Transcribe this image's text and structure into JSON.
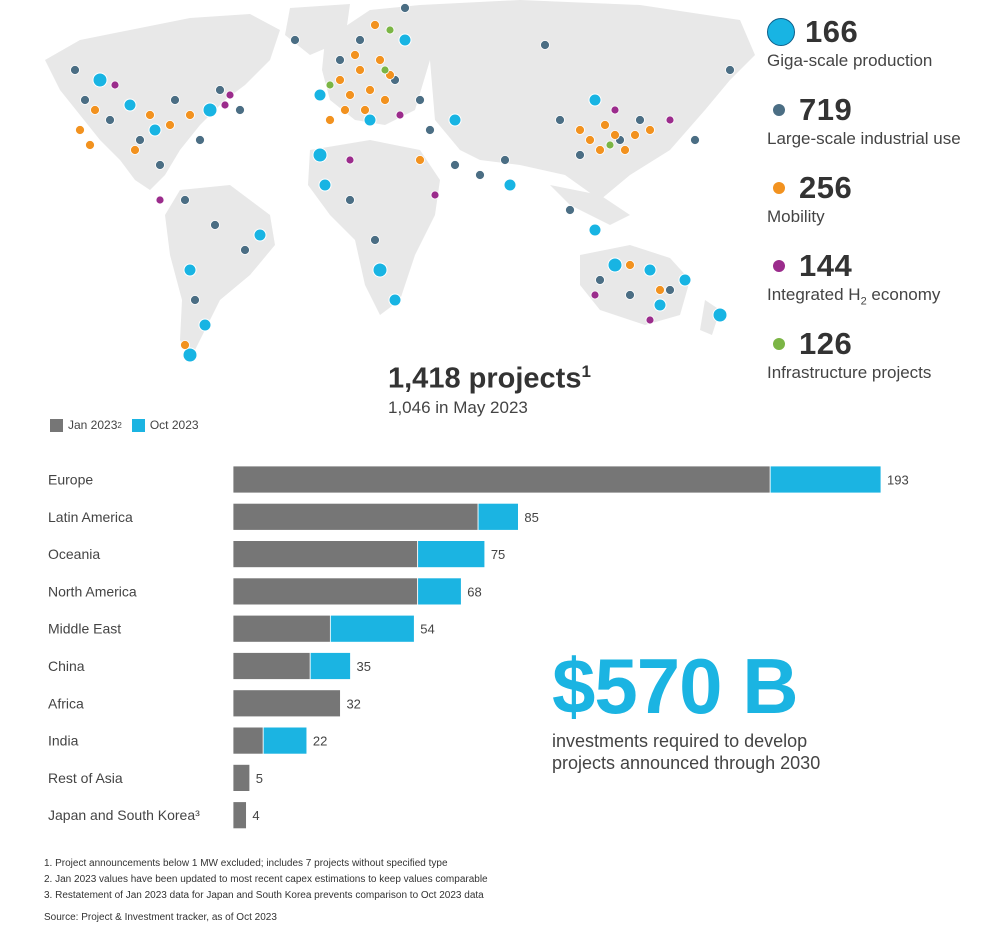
{
  "colors": {
    "giga": "#18b4e3",
    "large": "#4b6e84",
    "mobility": "#f2921f",
    "integrated": "#9b2c8c",
    "infrastructure": "#7bb545",
    "land": "#e8e8e8",
    "jan": "#767676",
    "oct": "#1bb4e2"
  },
  "stats": [
    {
      "value": "166",
      "label": "Giga-scale production",
      "icon": "giga-dot"
    },
    {
      "value": "719",
      "label": "Large-scale industrial use",
      "icon": "large-dot"
    },
    {
      "value": "256",
      "label": "Mobility",
      "icon": "mobility-dot"
    },
    {
      "value": "144",
      "label": "Integrated H",
      "label_sub": "2",
      "label_tail": " economy",
      "icon": "integrated-dot"
    },
    {
      "value": "126",
      "label": "Infrastructure projects",
      "icon": "infrastructure-dot"
    }
  ],
  "totals": {
    "projects": "1,418 projects",
    "projects_note": "1",
    "previous": "1,046 in May 2023"
  },
  "legend": {
    "jan": "Jan 2023",
    "jan_note": "2",
    "oct": "Oct 2023"
  },
  "chart_data": {
    "type": "bar",
    "orientation": "horizontal",
    "stacked": true,
    "categories": [
      "Europe",
      "Latin America",
      "Oceania",
      "North America",
      "Middle East",
      "China",
      "Africa",
      "India",
      "Rest of Asia",
      "Japan and South Korea³"
    ],
    "series": [
      {
        "name": "Jan 2023²",
        "values": [
          160,
          73,
          55,
          55,
          29,
          23,
          32,
          9,
          5,
          4
        ]
      },
      {
        "name": "Oct 2023",
        "values": [
          33,
          12,
          20,
          13,
          25,
          12,
          0,
          13,
          0,
          0
        ]
      }
    ],
    "totals": [
      193,
      85,
      75,
      68,
      54,
      35,
      32,
      22,
      5,
      4
    ],
    "xlim": [
      0,
      200
    ]
  },
  "investment": {
    "amount": "$570 B",
    "description": "investments required to develop projects announced through 2030"
  },
  "footnotes": [
    "1.  Project announcements below 1 MW excluded; includes 7 projects without specified type",
    "2.  Jan 2023 values have been updated to most recent capex estimations to keep values comparable",
    "3.  Restatement of Jan 2023 data for Japan and South Korea prevents comparison to Oct 2023 data"
  ],
  "source": "Source: Project & Investment tracker, as of Oct 2023"
}
